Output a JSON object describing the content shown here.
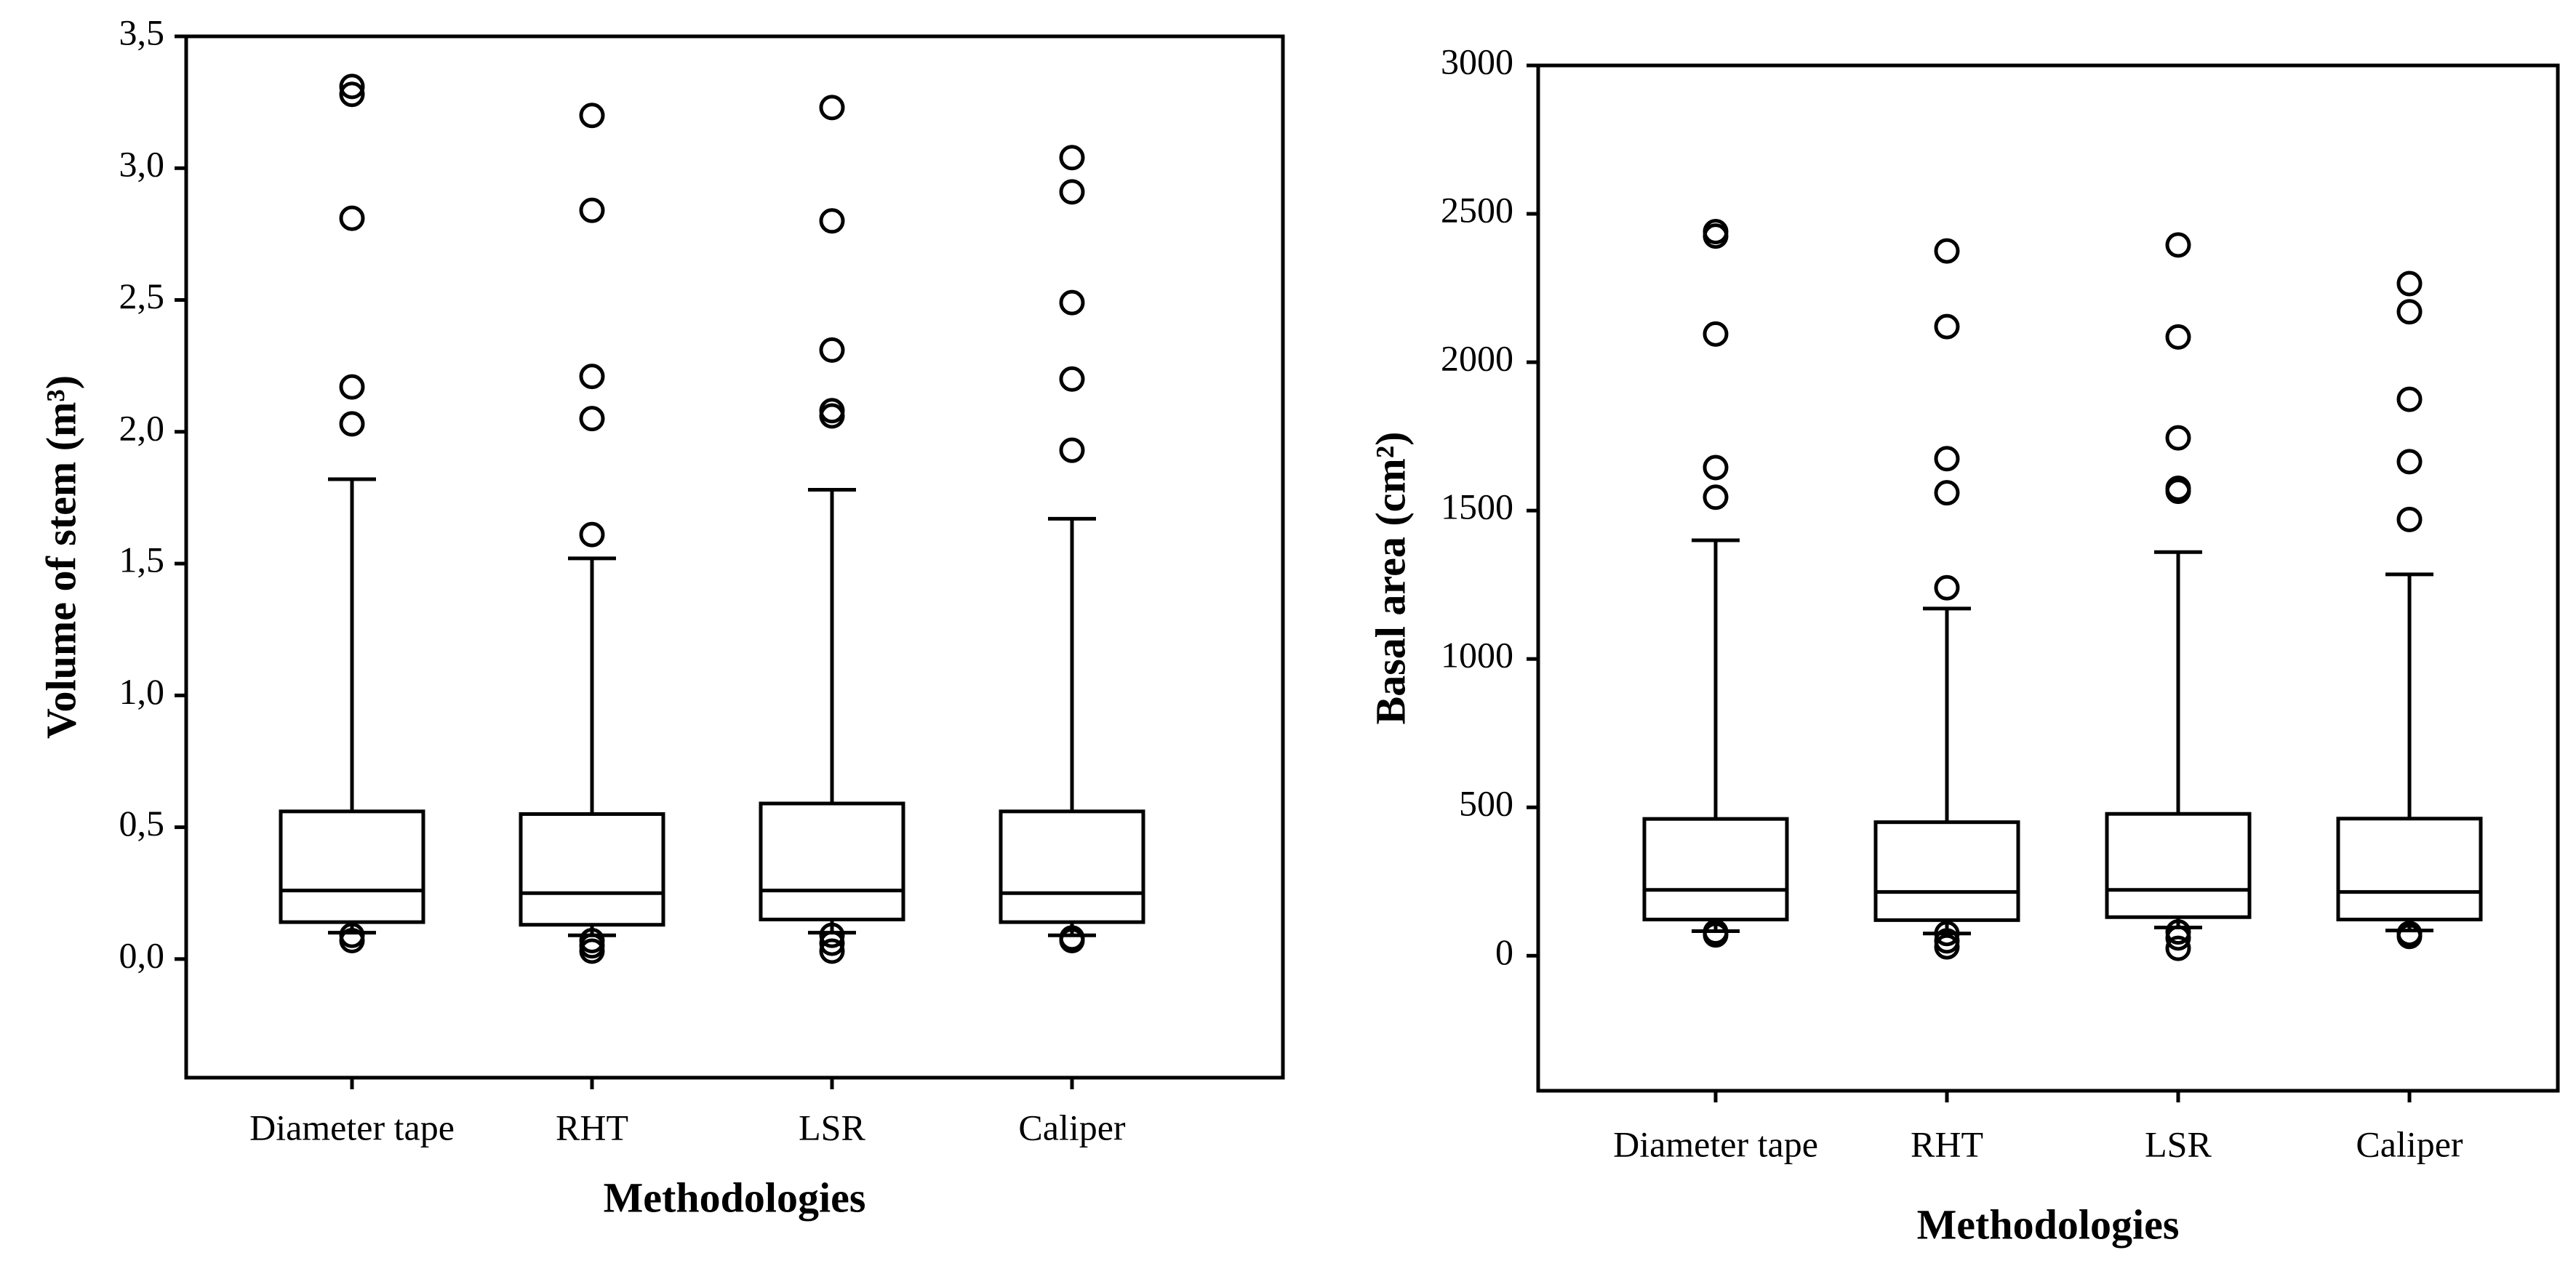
{
  "chart_data": [
    {
      "type": "box",
      "y_label": "Volume of stem (m³)",
      "x_label": "Methodologies",
      "categories": [
        "Diameter tape",
        "RHT",
        "LSR",
        "Caliper"
      ],
      "ylim": [
        -0.45,
        3.5
      ],
      "yticks": [
        {
          "value": 0,
          "label": "0,0"
        },
        {
          "value": 0.5,
          "label": "0,5"
        },
        {
          "value": 1,
          "label": "1,0"
        },
        {
          "value": 1.5,
          "label": "1,5"
        },
        {
          "value": 2,
          "label": "2,0"
        },
        {
          "value": 2.5,
          "label": "2,5"
        },
        {
          "value": 3,
          "label": "3,0"
        },
        {
          "value": 3.5,
          "label": "3,5"
        }
      ],
      "color": "#000000",
      "boxes": [
        {
          "whisker_low": 0.1,
          "q1": 0.14,
          "median": 0.26,
          "q3": 0.56,
          "whisker_high": 1.82,
          "outliers": [
            3.31,
            3.28,
            2.81,
            2.17,
            2.03,
            0.09,
            0.07
          ]
        },
        {
          "whisker_low": 0.09,
          "q1": 0.13,
          "median": 0.25,
          "q3": 0.55,
          "whisker_high": 1.52,
          "outliers": [
            3.2,
            2.84,
            2.21,
            2.05,
            1.61,
            0.07,
            0.05,
            0.03
          ]
        },
        {
          "whisker_low": 0.1,
          "q1": 0.15,
          "median": 0.26,
          "q3": 0.59,
          "whisker_high": 1.78,
          "outliers": [
            3.23,
            2.8,
            2.31,
            2.08,
            2.06,
            0.09,
            0.06,
            0.03
          ]
        },
        {
          "whisker_low": 0.09,
          "q1": 0.14,
          "median": 0.25,
          "q3": 0.56,
          "whisker_high": 1.67,
          "outliers": [
            3.04,
            2.91,
            2.49,
            2.2,
            1.93,
            0.08,
            0.07
          ]
        }
      ]
    },
    {
      "type": "box",
      "y_label": "Basal area (cm²)",
      "x_label": "Methodologies",
      "categories": [
        "Diameter tape",
        "RHT",
        "LSR",
        "Caliper"
      ],
      "ylim": [
        -455,
        3000
      ],
      "yticks": [
        0,
        500,
        1000,
        1500,
        2000,
        2500,
        3000
      ],
      "color": "#000000",
      "boxes": [
        {
          "whisker_low": 83,
          "q1": 122,
          "median": 222,
          "q3": 461,
          "whisker_high": 1400,
          "outliers": [
            2440,
            2425,
            2095,
            1645,
            1545,
            80,
            70
          ]
        },
        {
          "whisker_low": 75,
          "q1": 120,
          "median": 215,
          "q3": 450,
          "whisker_high": 1170,
          "outliers": [
            2375,
            2120,
            1675,
            1560,
            1240,
            75,
            50,
            30
          ]
        },
        {
          "whisker_low": 95,
          "q1": 130,
          "median": 222,
          "q3": 478,
          "whisker_high": 1360,
          "outliers": [
            2395,
            2085,
            1745,
            1575,
            1565,
            80,
            60,
            25
          ]
        },
        {
          "whisker_low": 85,
          "q1": 122,
          "median": 215,
          "q3": 462,
          "whisker_high": 1285,
          "outliers": [
            2265,
            2170,
            1875,
            1665,
            1470,
            75,
            65
          ]
        }
      ]
    }
  ]
}
